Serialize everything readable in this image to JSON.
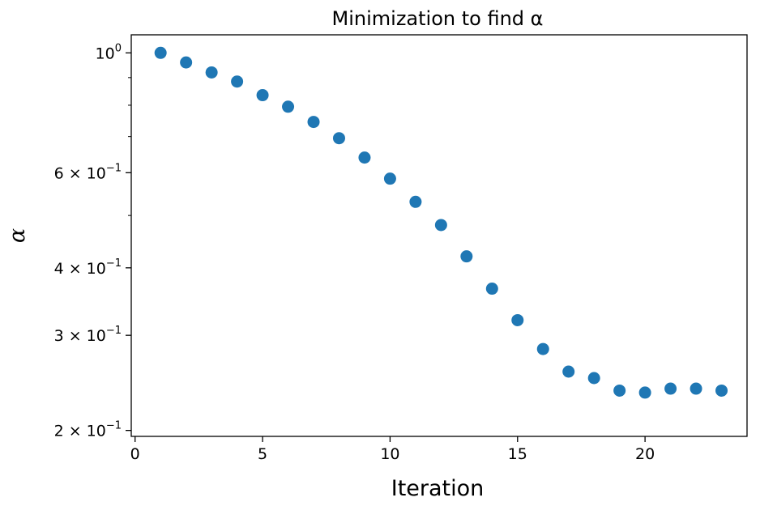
{
  "chart_data": {
    "type": "scatter",
    "title": "Minimization to find α",
    "xlabel": "Iteration",
    "ylabel": "α",
    "yscale": "log",
    "xlim": [
      -0.15,
      24.0
    ],
    "ylim": [
      0.195,
      1.08
    ],
    "grid": false,
    "marker_color": "#1f77b4",
    "x_ticks": [
      0,
      5,
      10,
      15,
      20
    ],
    "x_tick_labels": [
      "0",
      "5",
      "10",
      "15",
      "20"
    ],
    "y_ticks": [
      {
        "value": 1.0,
        "mantissa": "",
        "exponent": "0"
      },
      {
        "value": 0.6,
        "mantissa": "6",
        "exponent": "−1"
      },
      {
        "value": 0.4,
        "mantissa": "4",
        "exponent": "−1"
      },
      {
        "value": 0.3,
        "mantissa": "3",
        "exponent": "−1"
      },
      {
        "value": 0.2,
        "mantissa": "2",
        "exponent": "−1"
      }
    ],
    "y_minor_ticks": [
      0.9,
      0.8,
      0.7,
      0.5
    ],
    "x": [
      1,
      2,
      3,
      4,
      5,
      6,
      7,
      8,
      9,
      10,
      11,
      12,
      13,
      14,
      15,
      16,
      17,
      18,
      19,
      20,
      21,
      22,
      23
    ],
    "y": [
      1.0,
      0.96,
      0.92,
      0.885,
      0.835,
      0.795,
      0.745,
      0.695,
      0.64,
      0.585,
      0.53,
      0.48,
      0.42,
      0.366,
      0.32,
      0.283,
      0.257,
      0.25,
      0.237,
      0.235,
      0.239,
      0.239,
      0.237
    ]
  }
}
